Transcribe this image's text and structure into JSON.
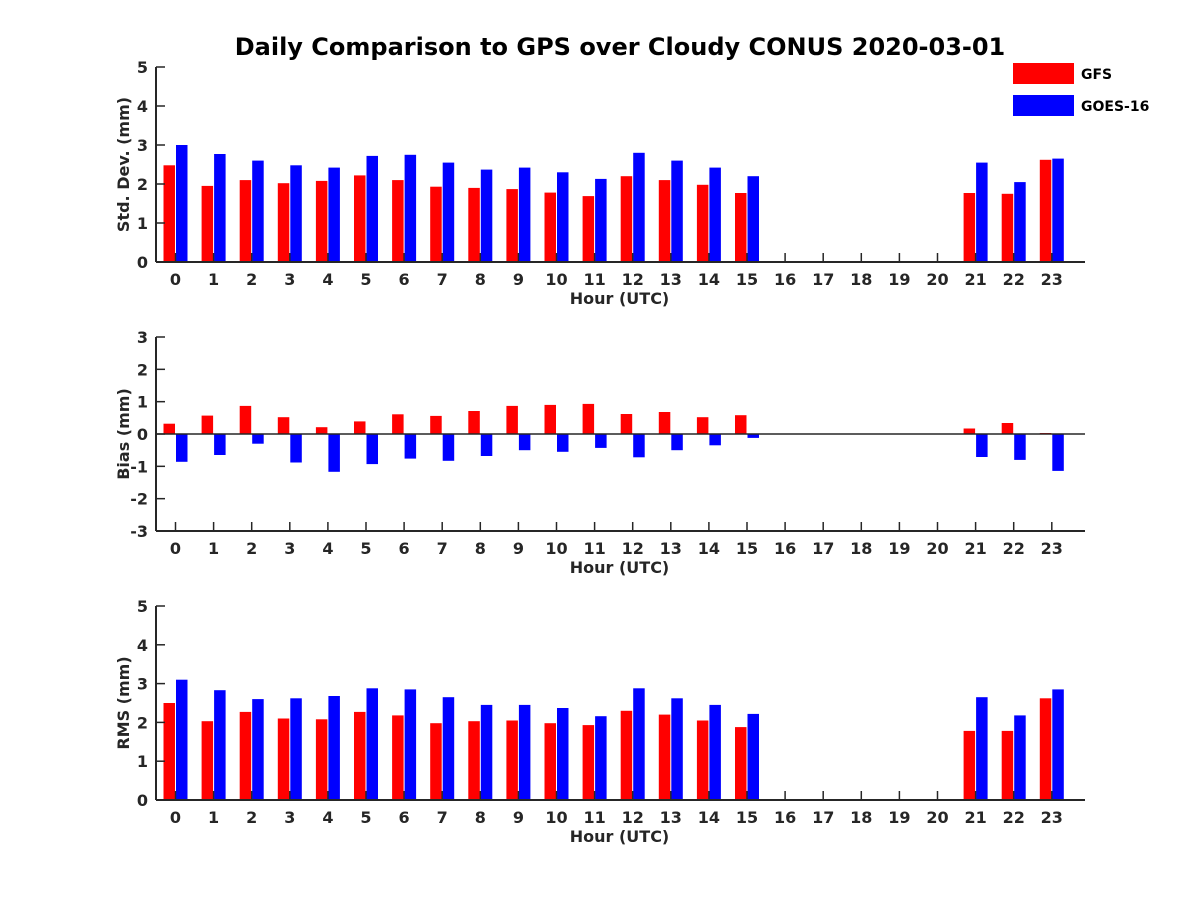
{
  "figure": {
    "title": "Daily Comparison to GPS over Cloudy CONUS 2020-03-01"
  },
  "legend": [
    {
      "name": "GFS",
      "color": "#ff0000"
    },
    {
      "name": "GOES-16",
      "color": "#0000ff"
    }
  ],
  "chart_data": [
    {
      "type": "bar",
      "title": "Daily Comparison to GPS over Cloudy CONUS 2020-03-01",
      "xlabel": "Hour (UTC)",
      "ylabel": "Std. Dev. (mm)",
      "ylim": [
        0,
        5
      ],
      "yticks": [
        0,
        1,
        2,
        3,
        4,
        5
      ],
      "categories": [
        "0",
        "1",
        "2",
        "3",
        "4",
        "5",
        "6",
        "7",
        "8",
        "9",
        "10",
        "11",
        "12",
        "13",
        "14",
        "15",
        "16",
        "17",
        "18",
        "19",
        "20",
        "21",
        "22",
        "23"
      ],
      "series": [
        {
          "name": "GFS",
          "color": "#ff0000",
          "values": [
            2.48,
            1.95,
            2.1,
            2.02,
            2.08,
            2.22,
            2.1,
            1.93,
            1.9,
            1.87,
            1.78,
            1.69,
            2.2,
            2.1,
            1.98,
            1.77,
            null,
            null,
            null,
            null,
            null,
            1.77,
            1.75,
            2.62
          ]
        },
        {
          "name": "GOES-16",
          "color": "#0000ff",
          "values": [
            3.0,
            2.77,
            2.6,
            2.48,
            2.42,
            2.72,
            2.75,
            2.55,
            2.37,
            2.42,
            2.3,
            2.13,
            2.8,
            2.6,
            2.42,
            2.2,
            null,
            null,
            null,
            null,
            null,
            2.55,
            2.05,
            2.65
          ]
        }
      ],
      "grid": false,
      "legend": "top-right"
    },
    {
      "type": "bar",
      "xlabel": "Hour (UTC)",
      "ylabel": "Bias (mm)",
      "ylim": [
        -3,
        3
      ],
      "yticks": [
        -3,
        -2,
        -1,
        0,
        1,
        2,
        3
      ],
      "zero_line": true,
      "categories": [
        "0",
        "1",
        "2",
        "3",
        "4",
        "5",
        "6",
        "7",
        "8",
        "9",
        "10",
        "11",
        "12",
        "13",
        "14",
        "15",
        "16",
        "17",
        "18",
        "19",
        "20",
        "21",
        "22",
        "23"
      ],
      "series": [
        {
          "name": "GFS",
          "color": "#ff0000",
          "values": [
            0.32,
            0.57,
            0.87,
            0.52,
            0.21,
            0.39,
            0.61,
            0.56,
            0.71,
            0.87,
            0.9,
            0.93,
            0.62,
            0.68,
            0.52,
            0.58,
            null,
            null,
            null,
            null,
            null,
            0.17,
            0.34,
            0.03
          ]
        },
        {
          "name": "GOES-16",
          "color": "#0000ff",
          "values": [
            -0.86,
            -0.65,
            -0.3,
            -0.88,
            -1.17,
            -0.93,
            -0.76,
            -0.83,
            -0.68,
            -0.5,
            -0.55,
            -0.43,
            -0.72,
            -0.5,
            -0.35,
            -0.12,
            null,
            null,
            null,
            null,
            null,
            -0.71,
            -0.8,
            -1.14
          ]
        }
      ],
      "grid": false
    },
    {
      "type": "bar",
      "xlabel": "Hour (UTC)",
      "ylabel": "RMS (mm)",
      "ylim": [
        0,
        5
      ],
      "yticks": [
        0,
        1,
        2,
        3,
        4,
        5
      ],
      "categories": [
        "0",
        "1",
        "2",
        "3",
        "4",
        "5",
        "6",
        "7",
        "8",
        "9",
        "10",
        "11",
        "12",
        "13",
        "14",
        "15",
        "16",
        "17",
        "18",
        "19",
        "20",
        "21",
        "22",
        "23"
      ],
      "series": [
        {
          "name": "GFS",
          "color": "#ff0000",
          "values": [
            2.5,
            2.03,
            2.27,
            2.1,
            2.08,
            2.27,
            2.18,
            1.98,
            2.03,
            2.05,
            1.98,
            1.93,
            2.3,
            2.2,
            2.05,
            1.88,
            null,
            null,
            null,
            null,
            null,
            1.78,
            1.78,
            2.62
          ]
        },
        {
          "name": "GOES-16",
          "color": "#0000ff",
          "values": [
            3.1,
            2.83,
            2.6,
            2.62,
            2.68,
            2.88,
            2.85,
            2.65,
            2.45,
            2.45,
            2.37,
            2.16,
            2.88,
            2.62,
            2.45,
            2.22,
            null,
            null,
            null,
            null,
            null,
            2.65,
            2.18,
            2.85
          ]
        }
      ],
      "grid": false
    }
  ]
}
